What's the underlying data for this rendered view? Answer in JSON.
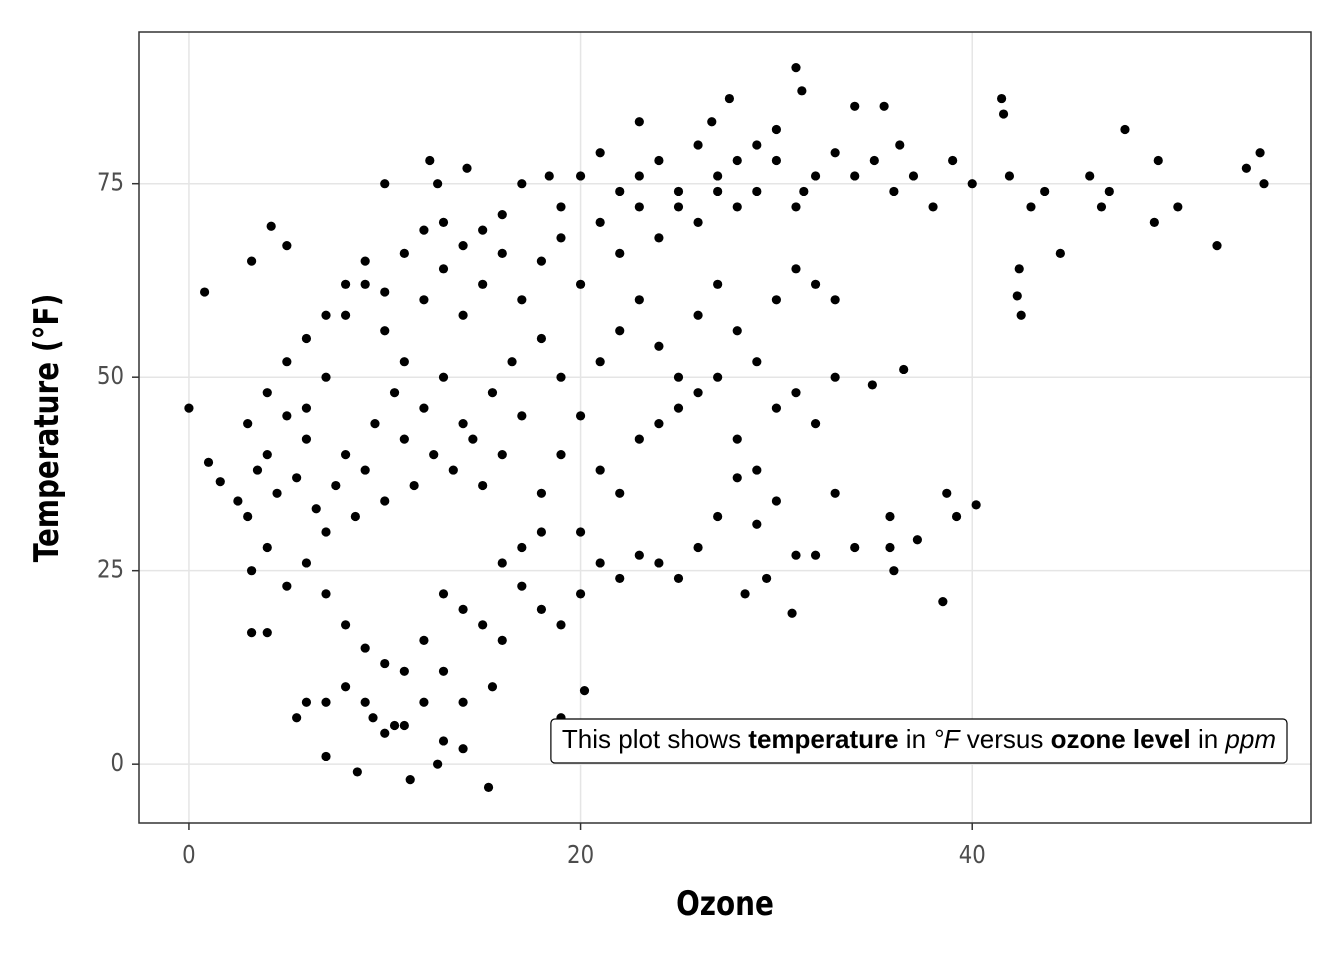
{
  "chart_data": {
    "type": "scatter",
    "x_label": "Ozone",
    "y_label": "Temperature (°F)",
    "color": "#000000",
    "grid": true,
    "xlim": [
      -2.55,
      57.3
    ],
    "ylim": [
      -7.6,
      94.6
    ],
    "xticks": [
      0,
      20,
      40
    ],
    "yticks": [
      0,
      25,
      50,
      75
    ],
    "annotation": [
      {
        "text": "This plot shows ",
        "style": "normal"
      },
      {
        "text": "temperature",
        "style": "bold"
      },
      {
        "text": " in ",
        "style": "normal"
      },
      {
        "text": "°F",
        "style": "italic"
      },
      {
        "text": " versus ",
        "style": "normal"
      },
      {
        "text": "ozone level",
        "style": "bold"
      },
      {
        "text": " in ",
        "style": "normal"
      },
      {
        "text": "ppm",
        "style": "italic"
      }
    ],
    "x": [
      0,
      0.8,
      1,
      1.6,
      31,
      31.3,
      15.3,
      11.3,
      8.6,
      12.7,
      54.7,
      54.9,
      54,
      52.5,
      50.5,
      49.5,
      49.3,
      47.8,
      47,
      46.6,
      46,
      44.5,
      43.7,
      43,
      42.4,
      41.9,
      41.6,
      41.5,
      42.5,
      42.3,
      40,
      40.2,
      38.7,
      38.5,
      39.2,
      37.2,
      36,
      35.8,
      35.8,
      34,
      36.5,
      34.9,
      36.3,
      35.5,
      34,
      27.6,
      26.7,
      31.4,
      30.8,
      29.5,
      28.4,
      9.4,
      10.5,
      7,
      5.5,
      6,
      15.5,
      14,
      20.2,
      19,
      13,
      14,
      3.2,
      4,
      4.2,
      3.2,
      5,
      10,
      12.3,
      14.2,
      12.7,
      18.4,
      21,
      23,
      2.5,
      3,
      3.5,
      4,
      4.5,
      5,
      5.5,
      6,
      6.5,
      7,
      7.5,
      8,
      8.5,
      9,
      9.5,
      10,
      10.5,
      11,
      11.5,
      12,
      12.5,
      13,
      13.5,
      14,
      14.5,
      15,
      15.5,
      16,
      16.5,
      17,
      3.2,
      4,
      5,
      6,
      7,
      8,
      9,
      10,
      11,
      12,
      13,
      14,
      15,
      16,
      17,
      18,
      19,
      20,
      21,
      22,
      23,
      24,
      25,
      26,
      27,
      28,
      29,
      30,
      31,
      32,
      33,
      6,
      7,
      8,
      9,
      10,
      11,
      12,
      13,
      14,
      15,
      16,
      17,
      18,
      19,
      20,
      21,
      22,
      23,
      24,
      25,
      26,
      27,
      28,
      29,
      30,
      31,
      32,
      33,
      34,
      35,
      36,
      37,
      38,
      39,
      18,
      19,
      20,
      21,
      22,
      23,
      24,
      25,
      26,
      27,
      28,
      29,
      30,
      31,
      32,
      33,
      17,
      19,
      20,
      22,
      23,
      24,
      25,
      26,
      27,
      28,
      29,
      30,
      18,
      19,
      20,
      21,
      22,
      23,
      24,
      25,
      26,
      27,
      28,
      29,
      30,
      31,
      32,
      33,
      3,
      4,
      5,
      6,
      7,
      8,
      9,
      10,
      11,
      12,
      13,
      14,
      15,
      16,
      8,
      9,
      10,
      11,
      12,
      13,
      7,
      16,
      17,
      18
    ],
    "values": [
      46,
      61,
      39,
      36.5,
      90,
      87,
      -3,
      -2,
      -1,
      0,
      79,
      75,
      77,
      67,
      72,
      78,
      70,
      82,
      74,
      72,
      76,
      66,
      74,
      72,
      64,
      76,
      84,
      86,
      58,
      60.5,
      75,
      33.5,
      35,
      21,
      32,
      29,
      25,
      32,
      28,
      28,
      51,
      49,
      80,
      85,
      85,
      86,
      83,
      74,
      19.5,
      24,
      22,
      6,
      5,
      1,
      6,
      8,
      10,
      8,
      9.5,
      6,
      3,
      2,
      17,
      17,
      69.5,
      65,
      67,
      75,
      78,
      77,
      75,
      76,
      79,
      83,
      34,
      32,
      38,
      40,
      35,
      45,
      37,
      42,
      33,
      30,
      36,
      40,
      32,
      38,
      44,
      34,
      48,
      42,
      36,
      46,
      40,
      50,
      38,
      44,
      42,
      36,
      48,
      40,
      52,
      45,
      25,
      28,
      23,
      26,
      22,
      18,
      15,
      13,
      12,
      16,
      22,
      20,
      18,
      16,
      23,
      20,
      18,
      22,
      26,
      24,
      27,
      26,
      24,
      28,
      32,
      37,
      31,
      34,
      27,
      27,
      35,
      55,
      50,
      58,
      62,
      56,
      52,
      60,
      64,
      58,
      62,
      66,
      60,
      65,
      68,
      62,
      70,
      66,
      72,
      68,
      74,
      70,
      76,
      72,
      74,
      78,
      72,
      76,
      79,
      76,
      78,
      74,
      76,
      72,
      78,
      55,
      50,
      45,
      52,
      56,
      60,
      54,
      50,
      58,
      62,
      56,
      52,
      60,
      64,
      62,
      60,
      75,
      72,
      76,
      74,
      76,
      78,
      72,
      80,
      74,
      78,
      80,
      82,
      35,
      40,
      30,
      38,
      35,
      42,
      44,
      46,
      48,
      50,
      42,
      38,
      46,
      48,
      44,
      50,
      44,
      48,
      52,
      46,
      58,
      62,
      65,
      61,
      66,
      69,
      70,
      67,
      69,
      71,
      10,
      8,
      4,
      5,
      8,
      12,
      8,
      26,
      28,
      30
    ]
  }
}
